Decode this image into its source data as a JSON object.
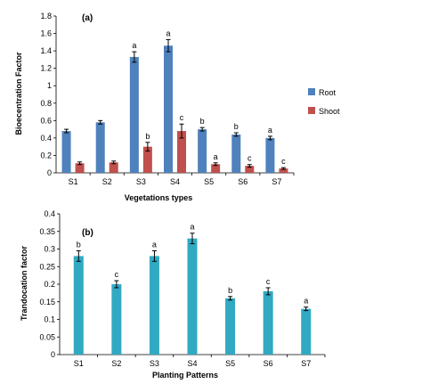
{
  "chart_data": [
    {
      "type": "bar",
      "panel_label": "(a)",
      "title": "",
      "xlabel": "Vegetations types",
      "ylabel": "Bioecentration Factor",
      "ylim": [
        0,
        1.8
      ],
      "yticks": [
        "0",
        "0.2",
        "0.4",
        "0.6",
        "0.8",
        "1",
        "1.2",
        "1.4",
        "1.6",
        "1.8"
      ],
      "categories": [
        "S1",
        "S2",
        "S3",
        "S4",
        "S5",
        "S6",
        "S7"
      ],
      "legend_position": "right",
      "grid": false,
      "series": [
        {
          "name": "Root",
          "color": "#4f81bd",
          "values": [
            0.48,
            0.58,
            1.33,
            1.46,
            0.5,
            0.44,
            0.4
          ],
          "errors": [
            0.02,
            0.02,
            0.06,
            0.07,
            0.02,
            0.02,
            0.02
          ],
          "letters": [
            "",
            "",
            "a",
            "a",
            "b",
            "b",
            "a"
          ]
        },
        {
          "name": "Shoot",
          "color": "#c0504d",
          "values": [
            0.11,
            0.12,
            0.3,
            0.48,
            0.1,
            0.08,
            0.05
          ],
          "errors": [
            0.015,
            0.015,
            0.05,
            0.08,
            0.015,
            0.015,
            0.01
          ],
          "letters": [
            "",
            "",
            "b",
            "c",
            "a",
            "c",
            "c"
          ]
        }
      ]
    },
    {
      "type": "bar",
      "panel_label": "(b)",
      "title": "",
      "xlabel": "Planting Patterns",
      "ylabel": "Trandocation factor",
      "ylim": [
        0,
        0.4
      ],
      "yticks": [
        "0",
        "0.05",
        "0.1",
        "0.15",
        "0.2",
        "0.25",
        "0.3",
        "0.35",
        "0.4"
      ],
      "categories": [
        "S1",
        "S2",
        "S3",
        "S4",
        "S5",
        "S6",
        "S7"
      ],
      "grid": false,
      "series": [
        {
          "color": "#31a9c2",
          "values": [
            0.28,
            0.2,
            0.28,
            0.33,
            0.16,
            0.18,
            0.13
          ],
          "errors": [
            0.015,
            0.01,
            0.015,
            0.015,
            0.005,
            0.01,
            0.005
          ],
          "letters": [
            "b",
            "c",
            "a",
            "a",
            "b",
            "c",
            "a"
          ]
        }
      ]
    }
  ]
}
